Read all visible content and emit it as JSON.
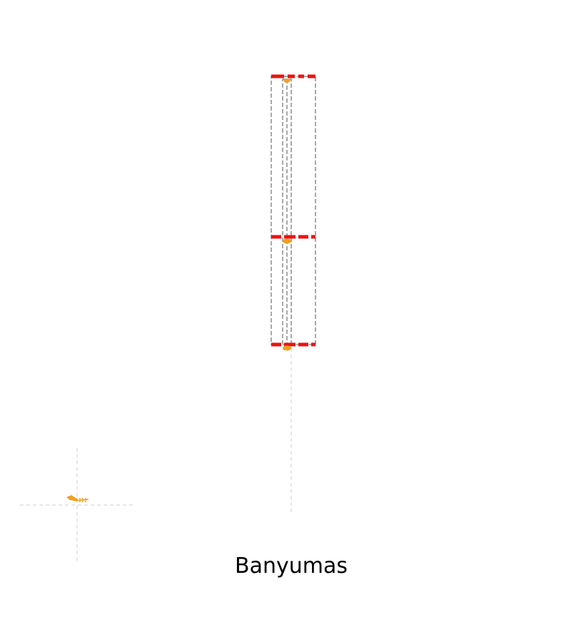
{
  "map": {
    "region_label": "Banyumas",
    "colors": {
      "boundary_primary": "#ee1111",
      "boundary_secondary": "#7a7a7a",
      "guide_line": "#cfcfcf",
      "marker": "#f0a020",
      "marker_dark": "#e08a1a",
      "label": "#000000"
    }
  }
}
